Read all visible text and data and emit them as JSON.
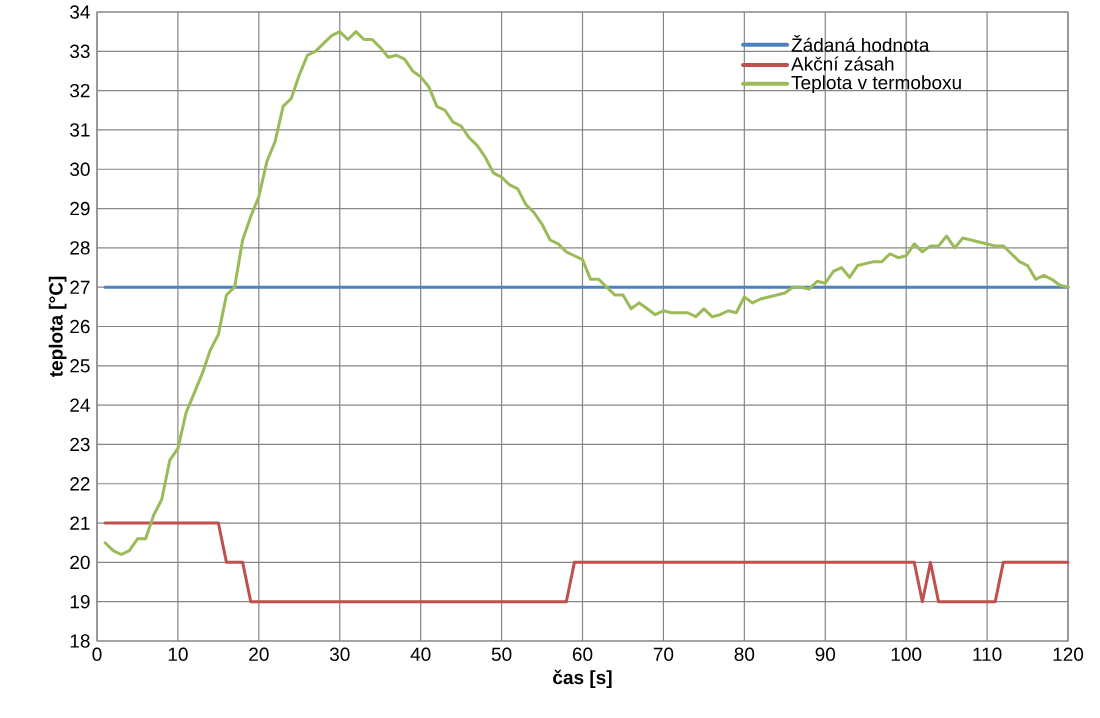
{
  "chart_data": {
    "type": "line",
    "xlabel": "čas [s]",
    "ylabel": "teplota [°C]",
    "xlim": [
      0,
      120
    ],
    "ylim": [
      18,
      34
    ],
    "xticks": [
      0,
      10,
      20,
      30,
      40,
      50,
      60,
      70,
      80,
      90,
      100,
      110,
      120
    ],
    "yticks": [
      18,
      19,
      20,
      21,
      22,
      23,
      24,
      25,
      26,
      27,
      28,
      29,
      30,
      31,
      32,
      33,
      34
    ],
    "grid": true,
    "legend": "top right",
    "line_style": "solid",
    "marker": "none",
    "x": [
      1,
      2,
      3,
      4,
      5,
      6,
      7,
      8,
      9,
      10,
      11,
      12,
      13,
      14,
      15,
      16,
      17,
      18,
      19,
      20,
      21,
      22,
      23,
      24,
      25,
      26,
      27,
      28,
      29,
      30,
      31,
      32,
      33,
      34,
      35,
      36,
      37,
      38,
      39,
      40,
      41,
      42,
      43,
      44,
      45,
      46,
      47,
      48,
      49,
      50,
      51,
      52,
      53,
      54,
      55,
      56,
      57,
      58,
      59,
      60,
      61,
      62,
      63,
      64,
      65,
      66,
      67,
      68,
      69,
      70,
      71,
      72,
      73,
      74,
      75,
      76,
      77,
      78,
      79,
      80,
      81,
      82,
      83,
      84,
      85,
      86,
      87,
      88,
      89,
      90,
      91,
      92,
      93,
      94,
      95,
      96,
      97,
      98,
      99,
      100,
      101,
      102,
      103,
      104,
      105,
      106,
      107,
      108,
      109,
      110,
      111,
      112,
      113,
      114,
      115,
      116,
      117,
      118,
      119,
      120
    ],
    "series": [
      {
        "name": "Žádaná hodnota",
        "color": "#4f81bd",
        "x": [
          1,
          120
        ],
        "values": [
          27,
          27
        ]
      },
      {
        "name": "Akční zásah",
        "color": "#c0504d",
        "x": [
          1,
          15,
          16,
          18,
          19,
          58,
          59,
          101,
          102,
          103,
          104,
          111,
          112,
          120
        ],
        "values": [
          21,
          21,
          20,
          20,
          19,
          19,
          20,
          20,
          19,
          20,
          19,
          19,
          20,
          20
        ]
      },
      {
        "name": "Teplota v termoboxu",
        "color": "#9bbb59",
        "values": [
          20.5,
          20.3,
          20.2,
          20.3,
          20.6,
          20.6,
          21.2,
          21.6,
          22.6,
          22.9,
          23.8,
          24.3,
          24.8,
          25.4,
          25.8,
          26.8,
          27.0,
          28.2,
          28.8,
          29.3,
          30.2,
          30.7,
          31.6,
          31.8,
          32.4,
          32.9,
          33.0,
          33.2,
          33.4,
          33.5,
          33.3,
          33.5,
          33.3,
          33.3,
          33.1,
          32.85,
          32.9,
          32.8,
          32.5,
          32.35,
          32.1,
          31.6,
          31.5,
          31.2,
          31.1,
          30.8,
          30.6,
          30.3,
          29.9,
          29.8,
          29.6,
          29.5,
          29.1,
          28.9,
          28.6,
          28.2,
          28.1,
          27.9,
          27.8,
          27.7,
          27.2,
          27.2,
          27.0,
          26.8,
          26.8,
          26.45,
          26.6,
          26.45,
          26.3,
          26.4,
          26.35,
          26.35,
          26.35,
          26.25,
          26.45,
          26.25,
          26.3,
          26.4,
          26.35,
          26.75,
          26.6,
          26.7,
          26.75,
          26.8,
          26.85,
          27.0,
          27.0,
          26.95,
          27.15,
          27.1,
          27.4,
          27.5,
          27.25,
          27.55,
          27.6,
          27.65,
          27.65,
          27.85,
          27.75,
          27.8,
          28.1,
          27.9,
          28.05,
          28.05,
          28.3,
          28.0,
          28.25,
          28.2,
          28.15,
          28.1,
          28.05,
          28.05,
          27.85,
          27.65,
          27.55,
          27.2,
          27.3,
          27.2,
          27.05,
          27.0
        ]
      }
    ]
  }
}
